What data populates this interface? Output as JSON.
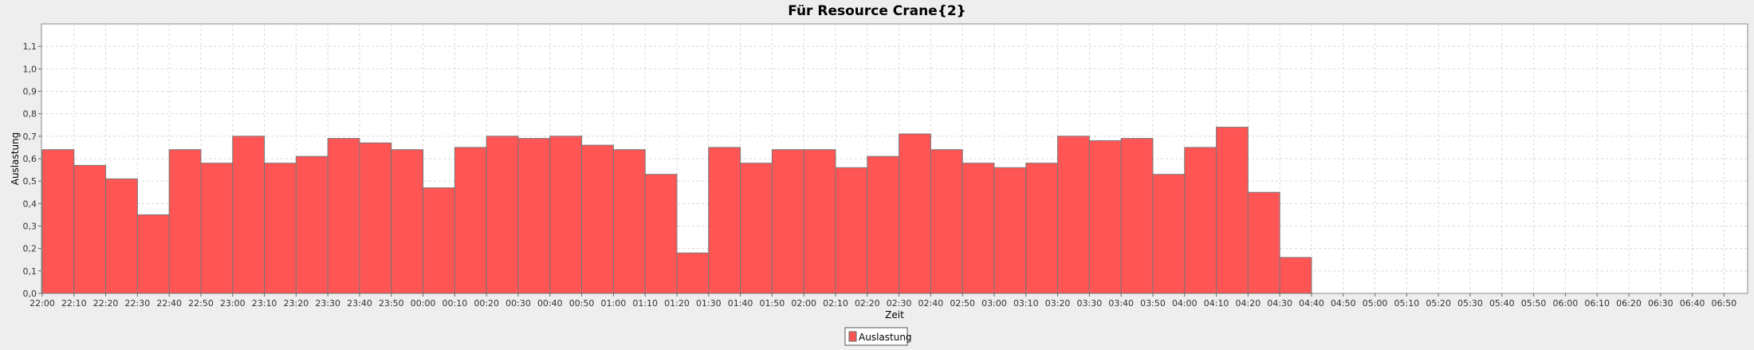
{
  "chart_data": {
    "type": "bar",
    "title": "Für Resource Crane{2}",
    "xlabel": "Zeit",
    "ylabel": "Auslastung",
    "ylim": [
      0,
      1.2
    ],
    "yticks": [
      "0,0",
      "0,1",
      "0,2",
      "0,3",
      "0,4",
      "0,5",
      "0,6",
      "0,7",
      "0,8",
      "0,9",
      "1,0",
      "1,1"
    ],
    "xticks": [
      "22:00",
      "22:10",
      "22:20",
      "22:30",
      "22:40",
      "22:50",
      "23:00",
      "23:10",
      "23:20",
      "23:30",
      "23:40",
      "23:50",
      "00:00",
      "00:10",
      "00:20",
      "00:30",
      "00:40",
      "00:50",
      "01:00",
      "01:10",
      "01:20",
      "01:30",
      "01:40",
      "01:50",
      "02:00",
      "02:10",
      "02:20",
      "02:30",
      "02:40",
      "02:50",
      "03:00",
      "03:10",
      "03:20",
      "03:30",
      "03:40",
      "03:50",
      "04:00",
      "04:10",
      "04:20",
      "04:30",
      "04:40",
      "04:50",
      "05:00",
      "05:10",
      "05:20",
      "05:30",
      "05:40",
      "05:50",
      "06:00",
      "06:10",
      "06:20",
      "06:30",
      "06:40",
      "06:50"
    ],
    "grid": true,
    "legend": "bottom-center",
    "series": [
      {
        "name": "Auslastung",
        "color": "#ff5555",
        "values": [
          0.64,
          0.57,
          0.51,
          0.35,
          0.64,
          0.58,
          0.7,
          0.58,
          0.61,
          0.69,
          0.67,
          0.64,
          0.47,
          0.65,
          0.7,
          0.69,
          0.7,
          0.66,
          0.64,
          0.53,
          0.18,
          0.65,
          0.58,
          0.64,
          0.64,
          0.56,
          0.61,
          0.71,
          0.64,
          0.58,
          0.56,
          0.58,
          0.7,
          0.68,
          0.69,
          0.53,
          0.65,
          0.74,
          0.45,
          0.16
        ]
      }
    ]
  }
}
